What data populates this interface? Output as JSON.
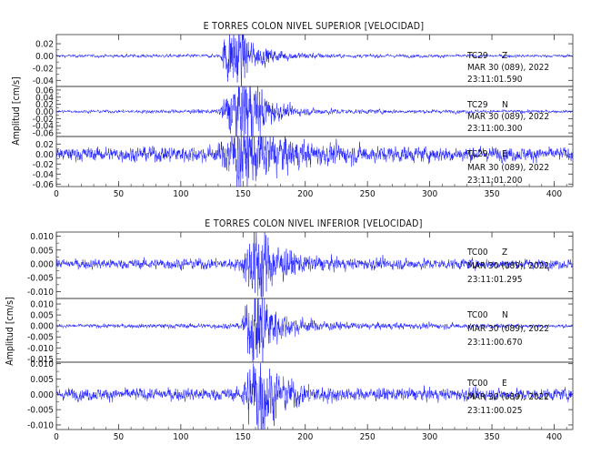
{
  "chart_data": [
    {
      "type": "line",
      "title": "E TORRES COLON NIVEL SUPERIOR [VELOCIDAD]",
      "ylabel": "Amplitud [cm/s]",
      "xlabel": "",
      "xlim": [
        0,
        415
      ],
      "x_ticks": [
        0,
        50,
        100,
        150,
        200,
        250,
        300,
        350,
        400
      ],
      "x_tick_labels": [
        "0",
        "50",
        "100",
        "150",
        "200",
        "250",
        "300",
        "350",
        "400"
      ],
      "color": "#1a1aff",
      "grid": false,
      "traces": [
        {
          "station": "TC29",
          "component": "Z",
          "date": "MAR 30 (089), 2022",
          "time": "23:11:01.590",
          "ylim": [
            -0.05,
            0.035
          ],
          "y_ticks": [
            -0.04,
            -0.02,
            0.0,
            0.02
          ],
          "y_tick_labels": [
            "-0.04",
            "-0.02",
            "0.00",
            "0.02"
          ],
          "noise_amplitude": 0.0012,
          "envelope": [
            [
              0,
              0.0012
            ],
            [
              132,
              0.0015
            ],
            [
              136,
              0.02
            ],
            [
              142,
              0.028
            ],
            [
              148,
              0.034
            ],
            [
              152,
              0.02
            ],
            [
              158,
              0.01
            ],
            [
              170,
              0.006
            ],
            [
              190,
              0.003
            ],
            [
              230,
              0.0015
            ],
            [
              415,
              0.0012
            ]
          ]
        },
        {
          "station": "TC29",
          "component": "N",
          "date": "MAR 30 (089), 2022",
          "time": "23:11:00.300",
          "ylim": [
            -0.07,
            0.07
          ],
          "y_ticks": [
            -0.06,
            -0.04,
            -0.02,
            0.0,
            0.02,
            0.04,
            0.06
          ],
          "y_tick_labels": [
            "-0.06",
            "-0.04",
            "-0.02",
            "0.00",
            "0.02",
            "0.04",
            "0.06"
          ],
          "noise_amplitude": 0.002,
          "envelope": [
            [
              0,
              0.002
            ],
            [
              130,
              0.003
            ],
            [
              138,
              0.025
            ],
            [
              145,
              0.05
            ],
            [
              152,
              0.055
            ],
            [
              160,
              0.045
            ],
            [
              168,
              0.025
            ],
            [
              180,
              0.01
            ],
            [
              200,
              0.005
            ],
            [
              250,
              0.003
            ],
            [
              415,
              0.002
            ]
          ]
        },
        {
          "station": "TC29",
          "component": "E",
          "date": "MAR 30 (089), 2022",
          "time": "23:11:01.200",
          "ylim": [
            -0.065,
            0.035
          ],
          "y_ticks": [
            -0.06,
            -0.04,
            -0.02,
            0.0,
            0.02
          ],
          "y_tick_labels": [
            "-0.06",
            "-0.04",
            "-0.02",
            "0.00",
            "0.02"
          ],
          "noise_amplitude": 0.006,
          "envelope": [
            [
              0,
              0.006
            ],
            [
              130,
              0.008
            ],
            [
              138,
              0.025
            ],
            [
              148,
              0.04
            ],
            [
              152,
              0.035
            ],
            [
              160,
              0.03
            ],
            [
              170,
              0.025
            ],
            [
              185,
              0.018
            ],
            [
              200,
              0.012
            ],
            [
              250,
              0.008
            ],
            [
              415,
              0.006
            ]
          ]
        }
      ]
    },
    {
      "type": "line",
      "title": "E TORRES COLON NIVEL INFERIOR [VELOCIDAD]",
      "ylabel": "Amplitud [cm/s]",
      "xlabel": "",
      "xlim": [
        0,
        415
      ],
      "x_ticks": [
        0,
        50,
        100,
        150,
        200,
        250,
        300,
        350,
        400
      ],
      "x_tick_labels": [
        "0",
        "50",
        "100",
        "150",
        "200",
        "250",
        "300",
        "350",
        "400"
      ],
      "color": "#1a1aff",
      "grid": false,
      "traces": [
        {
          "station": "TC00",
          "component": "Z",
          "date": "MAR 30 (089), 2022",
          "time": "23:11:01.295",
          "ylim": [
            -0.0125,
            0.0115
          ],
          "y_ticks": [
            -0.01,
            -0.005,
            0.0,
            0.005,
            0.01
          ],
          "y_tick_labels": [
            "-0.010",
            "-0.005",
            "0.000",
            "0.005",
            "0.010"
          ],
          "noise_amplitude": 0.0008,
          "envelope": [
            [
              0,
              0.0008
            ],
            [
              148,
              0.001
            ],
            [
              153,
              0.004
            ],
            [
              160,
              0.0075
            ],
            [
              164,
              0.009
            ],
            [
              170,
              0.005
            ],
            [
              180,
              0.003
            ],
            [
              200,
              0.0015
            ],
            [
              230,
              0.001
            ],
            [
              415,
              0.0008
            ]
          ]
        },
        {
          "station": "TC00",
          "component": "N",
          "date": "MAR 30 (089), 2022",
          "time": "23:11:00.670",
          "ylim": [
            -0.0165,
            0.0125
          ],
          "y_ticks": [
            -0.015,
            -0.01,
            -0.005,
            0.0,
            0.005,
            0.01
          ],
          "y_tick_labels": [
            "-0.015",
            "-0.010",
            "-0.005",
            "0.000",
            "0.005",
            "0.010"
          ],
          "noise_amplitude": 0.0004,
          "envelope": [
            [
              0,
              0.0004
            ],
            [
              148,
              0.0006
            ],
            [
              153,
              0.005
            ],
            [
              160,
              0.009
            ],
            [
              164,
              0.011
            ],
            [
              170,
              0.006
            ],
            [
              180,
              0.003
            ],
            [
              200,
              0.0015
            ],
            [
              230,
              0.0008
            ],
            [
              415,
              0.0004
            ]
          ]
        },
        {
          "station": "TC00",
          "component": "E",
          "date": "MAR 30 (089), 2022",
          "time": "23:11:00.025",
          "ylim": [
            -0.0115,
            0.0105
          ],
          "y_ticks": [
            -0.01,
            -0.005,
            0.0,
            0.005,
            0.01
          ],
          "y_tick_labels": [
            "-0.010",
            "-0.005",
            "0.000",
            "0.005",
            "0.010"
          ],
          "noise_amplitude": 0.0009,
          "envelope": [
            [
              0,
              0.0009
            ],
            [
              148,
              0.001
            ],
            [
              153,
              0.004
            ],
            [
              160,
              0.007
            ],
            [
              164,
              0.0085
            ],
            [
              170,
              0.005
            ],
            [
              180,
              0.003
            ],
            [
              200,
              0.0016
            ],
            [
              230,
              0.001
            ],
            [
              415,
              0.0009
            ]
          ]
        }
      ]
    }
  ]
}
